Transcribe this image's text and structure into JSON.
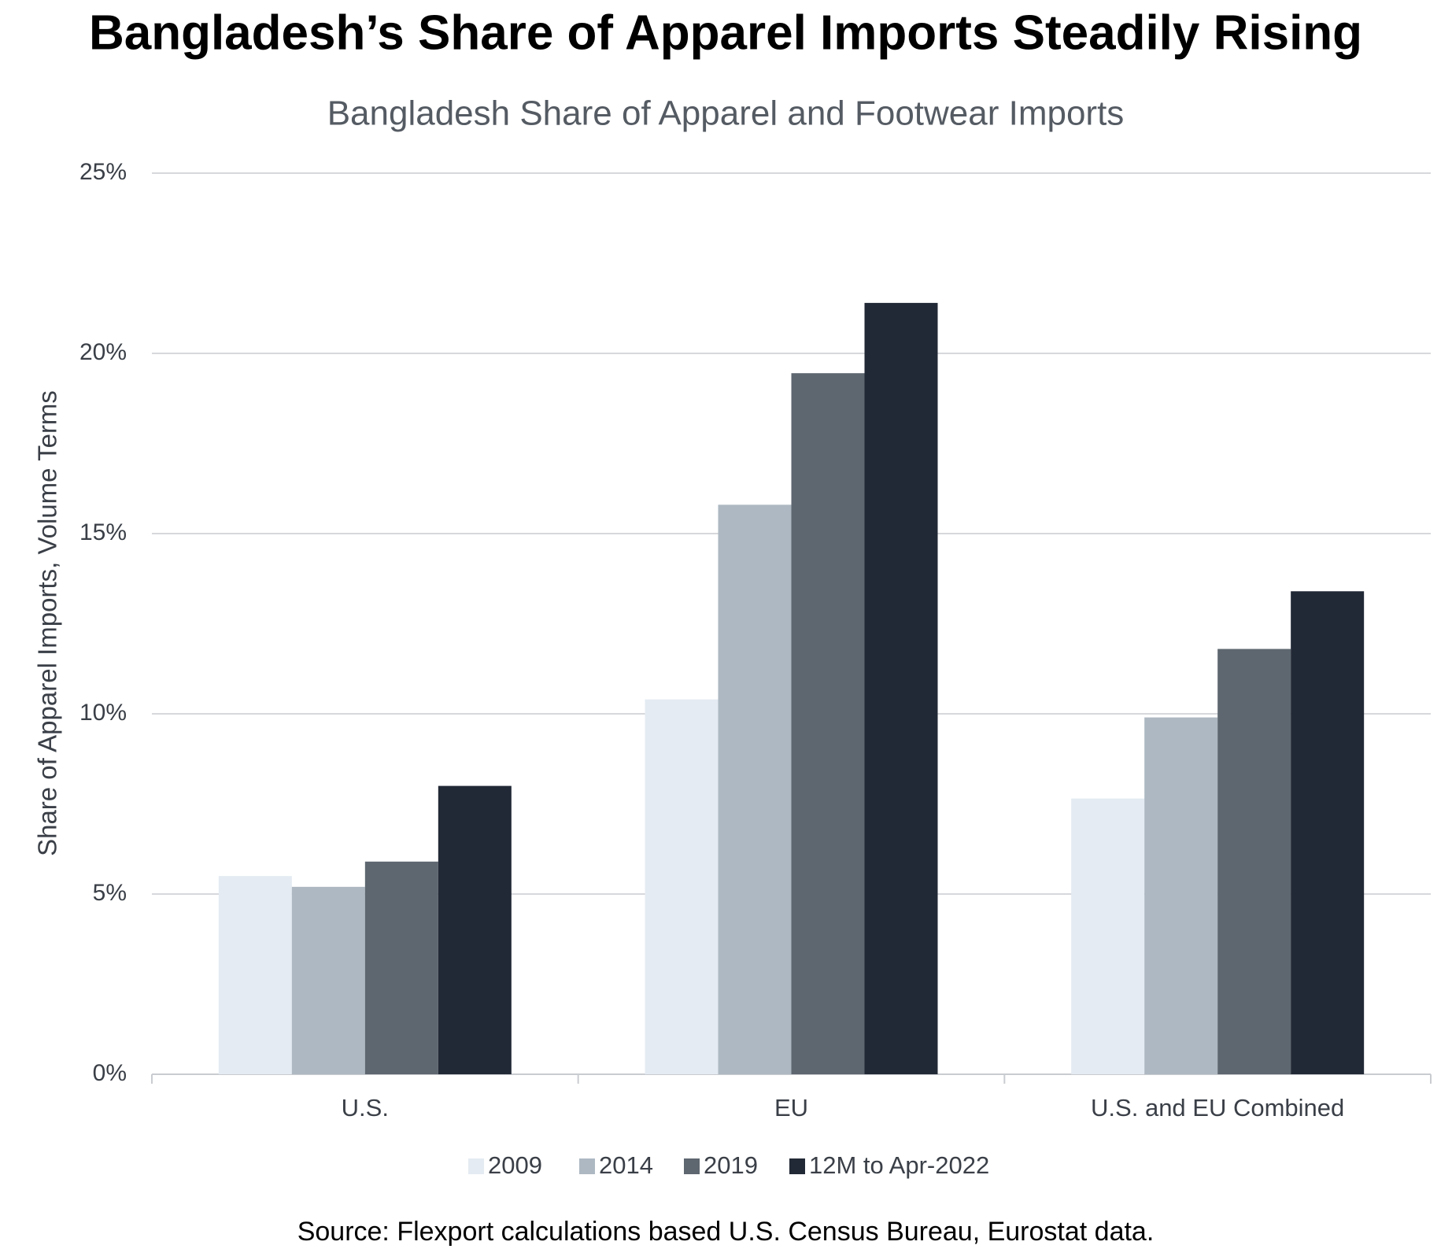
{
  "chart_data": {
    "type": "bar",
    "title": "Bangladesh’s Share of Apparel Imports Steadily Rising",
    "subtitle": "Bangladesh Share of Apparel and Footwear Imports",
    "y_label": "Share of Apparel Imports, Volume Terms",
    "source": "Source: Flexport calculations based U.S. Census Bureau, Eurostat data.",
    "categories": [
      "U.S.",
      "EU",
      "U.S. and EU Combined"
    ],
    "series": [
      {
        "name": "2009",
        "color": "#e4ebf2",
        "values": [
          5.5,
          10.4,
          7.65
        ]
      },
      {
        "name": "2014",
        "color": "#adb8c2",
        "values": [
          5.2,
          15.8,
          9.9
        ]
      },
      {
        "name": "2019",
        "color": "#5e6770",
        "values": [
          5.9,
          19.45,
          11.8
        ]
      },
      {
        "name": "12M to Apr-2022",
        "color": "#222936",
        "values": [
          8.0,
          21.4,
          13.4
        ]
      }
    ],
    "ylim": [
      0,
      25
    ],
    "yticks": [
      {
        "value": 0,
        "label": "0%"
      },
      {
        "value": 5,
        "label": "5%"
      },
      {
        "value": 10,
        "label": "10%"
      },
      {
        "value": 15,
        "label": "15%"
      },
      {
        "value": 20,
        "label": "20%"
      },
      {
        "value": 25,
        "label": "25%"
      }
    ],
    "grid": true
  }
}
